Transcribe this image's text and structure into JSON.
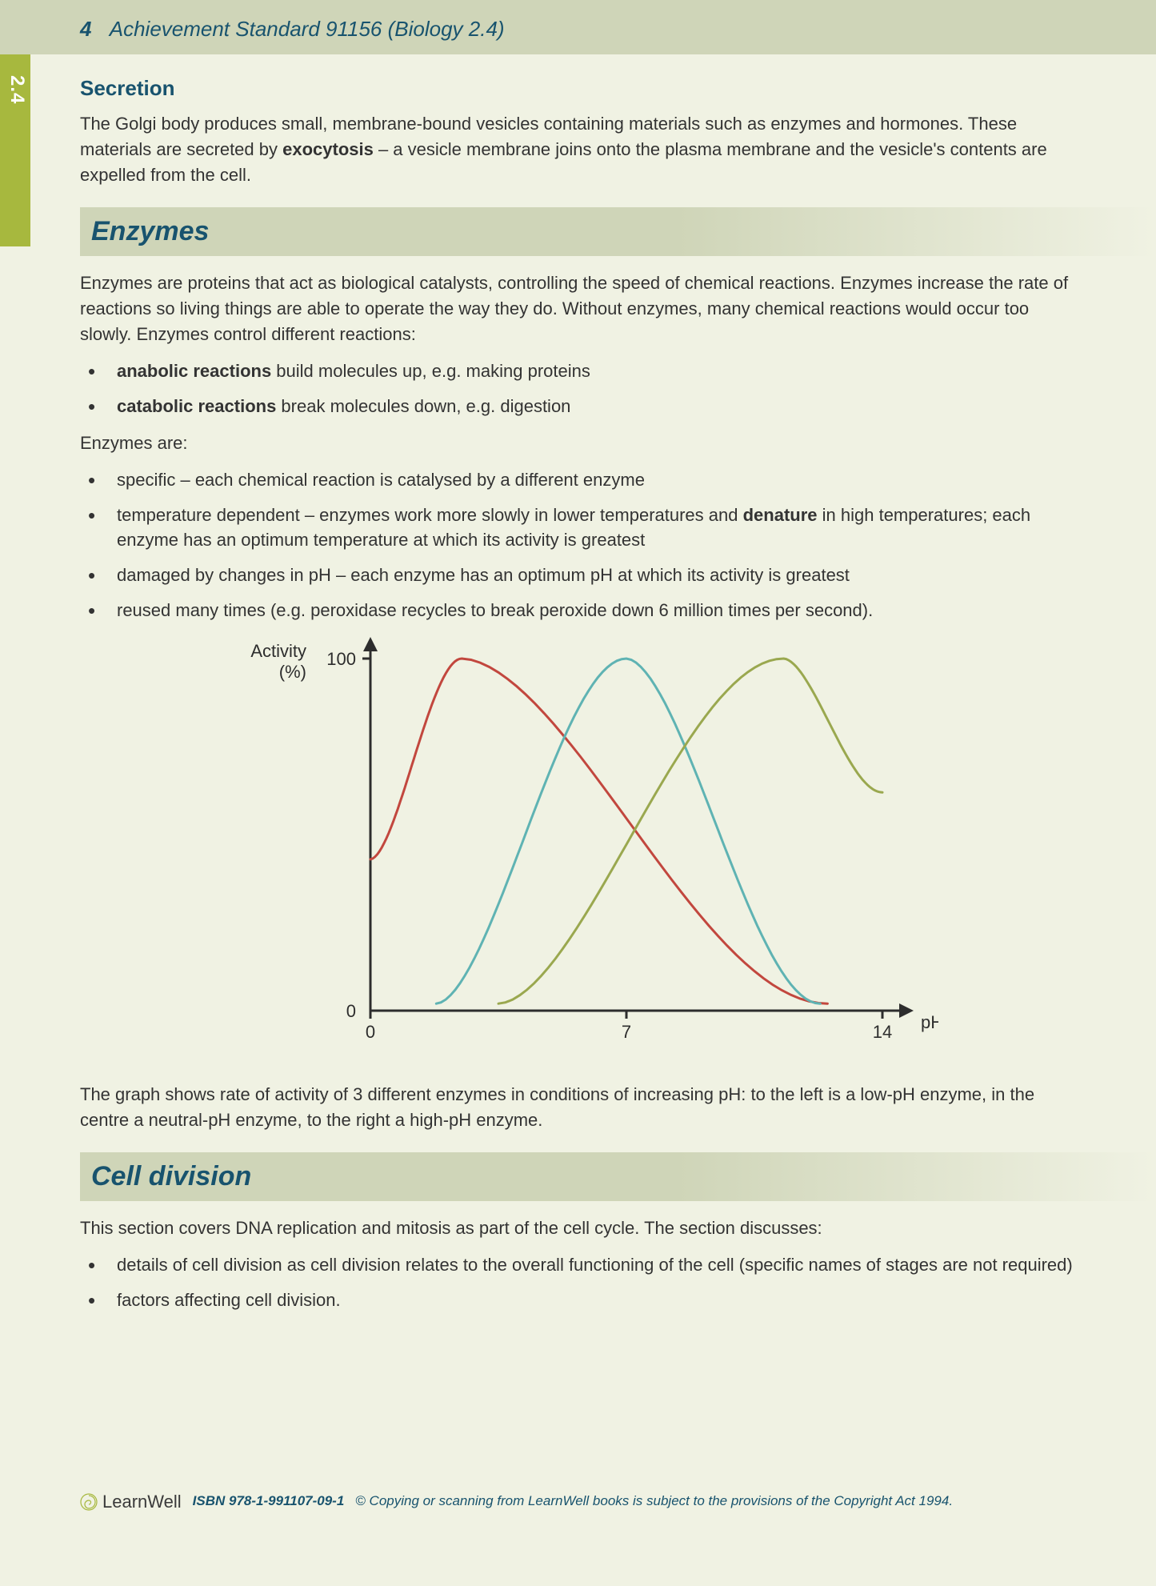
{
  "page": {
    "number": "4",
    "running_head": "Achievement Standard 91156 (Biology 2.4)",
    "tab": "2.4"
  },
  "secretion": {
    "heading": "Secretion",
    "body_pre": "The Golgi body produces small, membrane-bound vesicles containing materials such as enzymes and hormones. These materials are secreted by ",
    "body_bold": "exocytosis",
    "body_post": " – a vesicle membrane joins onto the plasma membrane and the vesicle's contents are expelled from the cell."
  },
  "enzymes": {
    "heading": "Enzymes",
    "intro": "Enzymes are proteins that act as biological catalysts, controlling the speed of chemical reactions. Enzymes increase the rate of reactions so living things are able to operate the way they do. Without enzymes, many chemical reactions would occur too slowly. Enzymes control different reactions:",
    "list1": [
      {
        "bold": "anabolic reactions",
        "rest": " build molecules up, e.g. making proteins"
      },
      {
        "bold": "catabolic reactions",
        "rest": " break molecules down, e.g. digestion"
      }
    ],
    "are_label": "Enzymes are:",
    "list2": [
      {
        "pre": "specific – each chemical reaction is catalysed by a different enzyme",
        "bold": "",
        "post": ""
      },
      {
        "pre": "temperature dependent – enzymes work more slowly in lower temperatures and ",
        "bold": "denature",
        "post": " in high temperatures; each enzyme has an optimum temperature at which its activity is greatest"
      },
      {
        "pre": "damaged by changes in pH – each enzyme has an optimum pH at which its activity is greatest",
        "bold": "",
        "post": ""
      },
      {
        "pre": "reused many times (e.g. peroxidase recycles to break peroxide down 6 million times per second).",
        "bold": "",
        "post": ""
      }
    ],
    "caption": "The graph shows rate of activity of 3 different enzymes in conditions of increasing pH: to the left is a low-pH enzyme, in the centre a neutral-pH enzyme, to the right a high-pH enzyme."
  },
  "chart": {
    "type": "line",
    "y_label": "Activity\n(%)",
    "y_max_label": "100",
    "y_min_label": "0",
    "x_label": "pH",
    "x_ticks": [
      "0",
      "7",
      "14"
    ],
    "xlim": [
      0,
      14
    ],
    "ylim": [
      0,
      100
    ],
    "axis_color": "#2d2d2d",
    "axis_width": 3,
    "line_width": 3,
    "background": "#f0f2e3",
    "label_color": "#2d2d2d",
    "label_fontsize": 22,
    "curves": [
      {
        "name": "low-pH enzyme",
        "color": "#c2473e",
        "peak_x": 2.5,
        "peak_y": 100,
        "start_x": 0,
        "start_y": 43,
        "end_x": 12.5,
        "end_y": 2
      },
      {
        "name": "neutral-pH enzyme",
        "color": "#5fb3b3",
        "peak_x": 7.0,
        "peak_y": 100,
        "start_x": 1.8,
        "start_y": 2,
        "end_x": 12.3,
        "end_y": 2
      },
      {
        "name": "high-pH enzyme",
        "color": "#9aa84f",
        "peak_x": 11.3,
        "peak_y": 100,
        "start_x": 3.5,
        "start_y": 2,
        "end_x": 14,
        "end_y": 62
      }
    ]
  },
  "cell_division": {
    "heading": "Cell division",
    "intro": "This section covers DNA replication and mitosis as part of the cell cycle. The section discusses:",
    "list": [
      "details of cell division as cell division relates to the overall functioning of the cell (specific names of stages are not required)",
      "factors affecting cell division."
    ]
  },
  "footer": {
    "brand": "LearnWell",
    "isbn": "ISBN 978-1-991107-09-1",
    "copy": "© Copying or scanning from LearnWell books is subject to the provisions of the Copyright Act 1994."
  }
}
